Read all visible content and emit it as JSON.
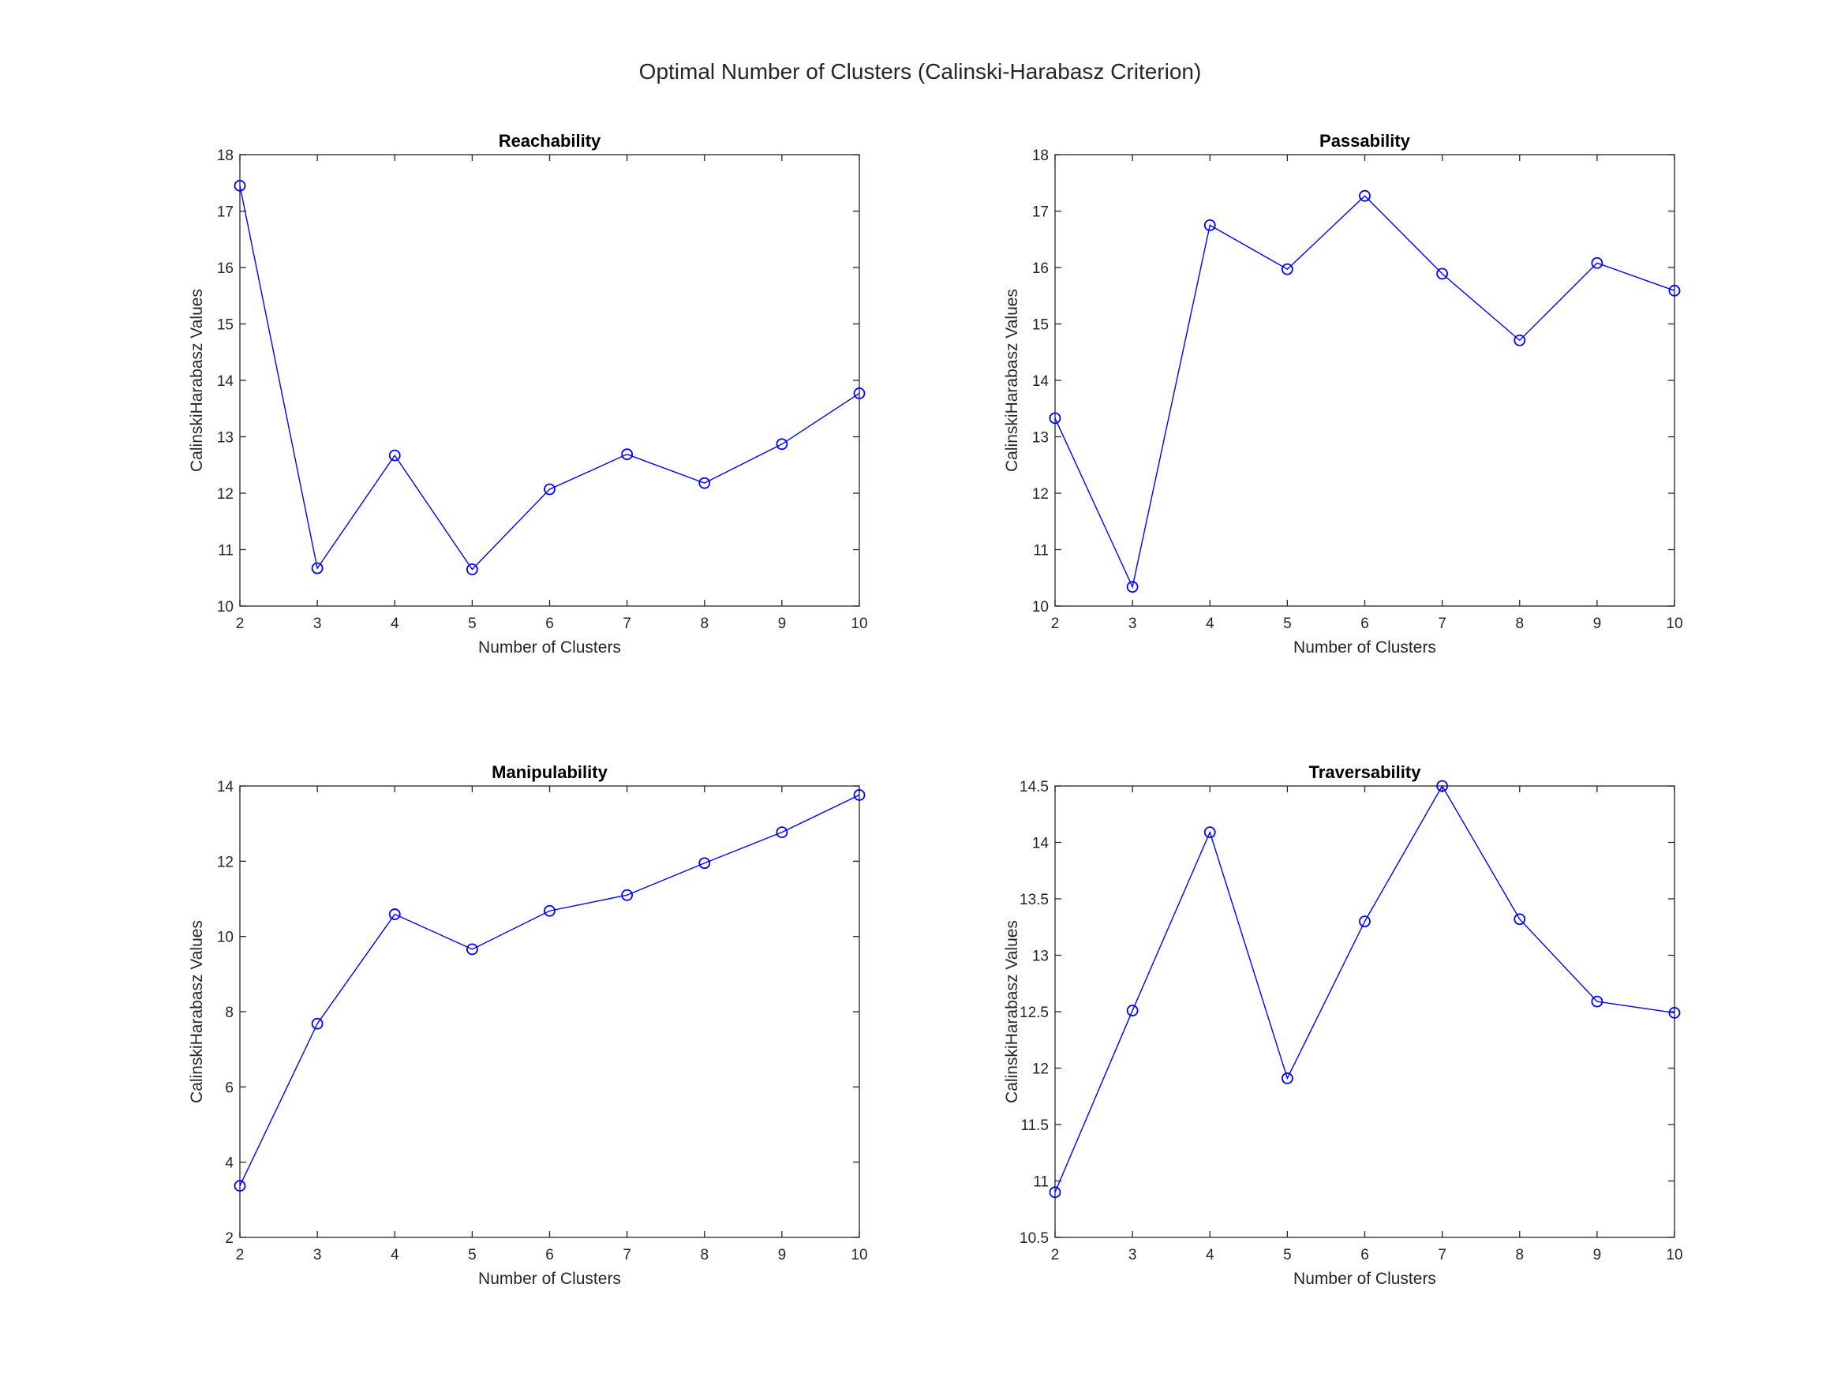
{
  "figure": {
    "title": "Optimal Number of Clusters (Calinski-Harabasz Criterion)"
  },
  "colors": {
    "series": "#0000ff",
    "axis": "#262626",
    "background": "#ffffff"
  },
  "chart_data": [
    {
      "type": "line",
      "title": "Reachability",
      "xlabel": "Number of Clusters",
      "ylabel": "CalinskiHarabasz Values",
      "x": [
        2,
        3,
        4,
        5,
        6,
        7,
        8,
        9,
        10
      ],
      "xlim": [
        2,
        10
      ],
      "ylim": [
        10,
        18
      ],
      "xticks": [
        2,
        3,
        4,
        5,
        6,
        7,
        8,
        9,
        10
      ],
      "yticks": [
        10,
        11,
        12,
        13,
        14,
        15,
        16,
        17,
        18
      ],
      "grid": false,
      "marker": "circle",
      "series": [
        {
          "values": [
            17.45,
            10.67,
            12.67,
            10.65,
            12.07,
            12.69,
            12.18,
            12.87,
            13.77
          ]
        }
      ]
    },
    {
      "type": "line",
      "title": "Passability",
      "xlabel": "Number of Clusters",
      "ylabel": "CalinskiHarabasz Values",
      "x": [
        2,
        3,
        4,
        5,
        6,
        7,
        8,
        9,
        10
      ],
      "xlim": [
        2,
        10
      ],
      "ylim": [
        10,
        18
      ],
      "xticks": [
        2,
        3,
        4,
        5,
        6,
        7,
        8,
        9,
        10
      ],
      "yticks": [
        10,
        11,
        12,
        13,
        14,
        15,
        16,
        17,
        18
      ],
      "grid": false,
      "marker": "circle",
      "series": [
        {
          "values": [
            13.33,
            10.34,
            16.75,
            15.97,
            17.27,
            15.89,
            14.71,
            16.08,
            15.59
          ]
        }
      ]
    },
    {
      "type": "line",
      "title": "Manipulability",
      "xlabel": "Number of Clusters",
      "ylabel": "CalinskiHarabasz Values",
      "x": [
        2,
        3,
        4,
        5,
        6,
        7,
        8,
        9,
        10
      ],
      "xlim": [
        2,
        10
      ],
      "ylim": [
        2,
        14
      ],
      "xticks": [
        2,
        3,
        4,
        5,
        6,
        7,
        8,
        9,
        10
      ],
      "yticks": [
        2,
        4,
        6,
        8,
        10,
        12,
        14
      ],
      "grid": false,
      "marker": "circle",
      "series": [
        {
          "values": [
            3.37,
            7.68,
            10.59,
            9.66,
            10.68,
            11.1,
            11.95,
            12.77,
            13.76
          ]
        }
      ]
    },
    {
      "type": "line",
      "title": "Traversability",
      "xlabel": "Number of Clusters",
      "ylabel": "CalinskiHarabasz Values",
      "x": [
        2,
        3,
        4,
        5,
        6,
        7,
        8,
        9,
        10
      ],
      "xlim": [
        2,
        10
      ],
      "ylim": [
        10.5,
        14.5
      ],
      "xticks": [
        2,
        3,
        4,
        5,
        6,
        7,
        8,
        9,
        10
      ],
      "yticks": [
        10.5,
        11,
        11.5,
        12,
        12.5,
        13,
        13.5,
        14,
        14.5
      ],
      "grid": false,
      "marker": "circle",
      "series": [
        {
          "values": [
            10.9,
            12.51,
            14.09,
            11.91,
            13.3,
            14.5,
            13.32,
            12.59,
            12.49
          ]
        }
      ]
    }
  ]
}
